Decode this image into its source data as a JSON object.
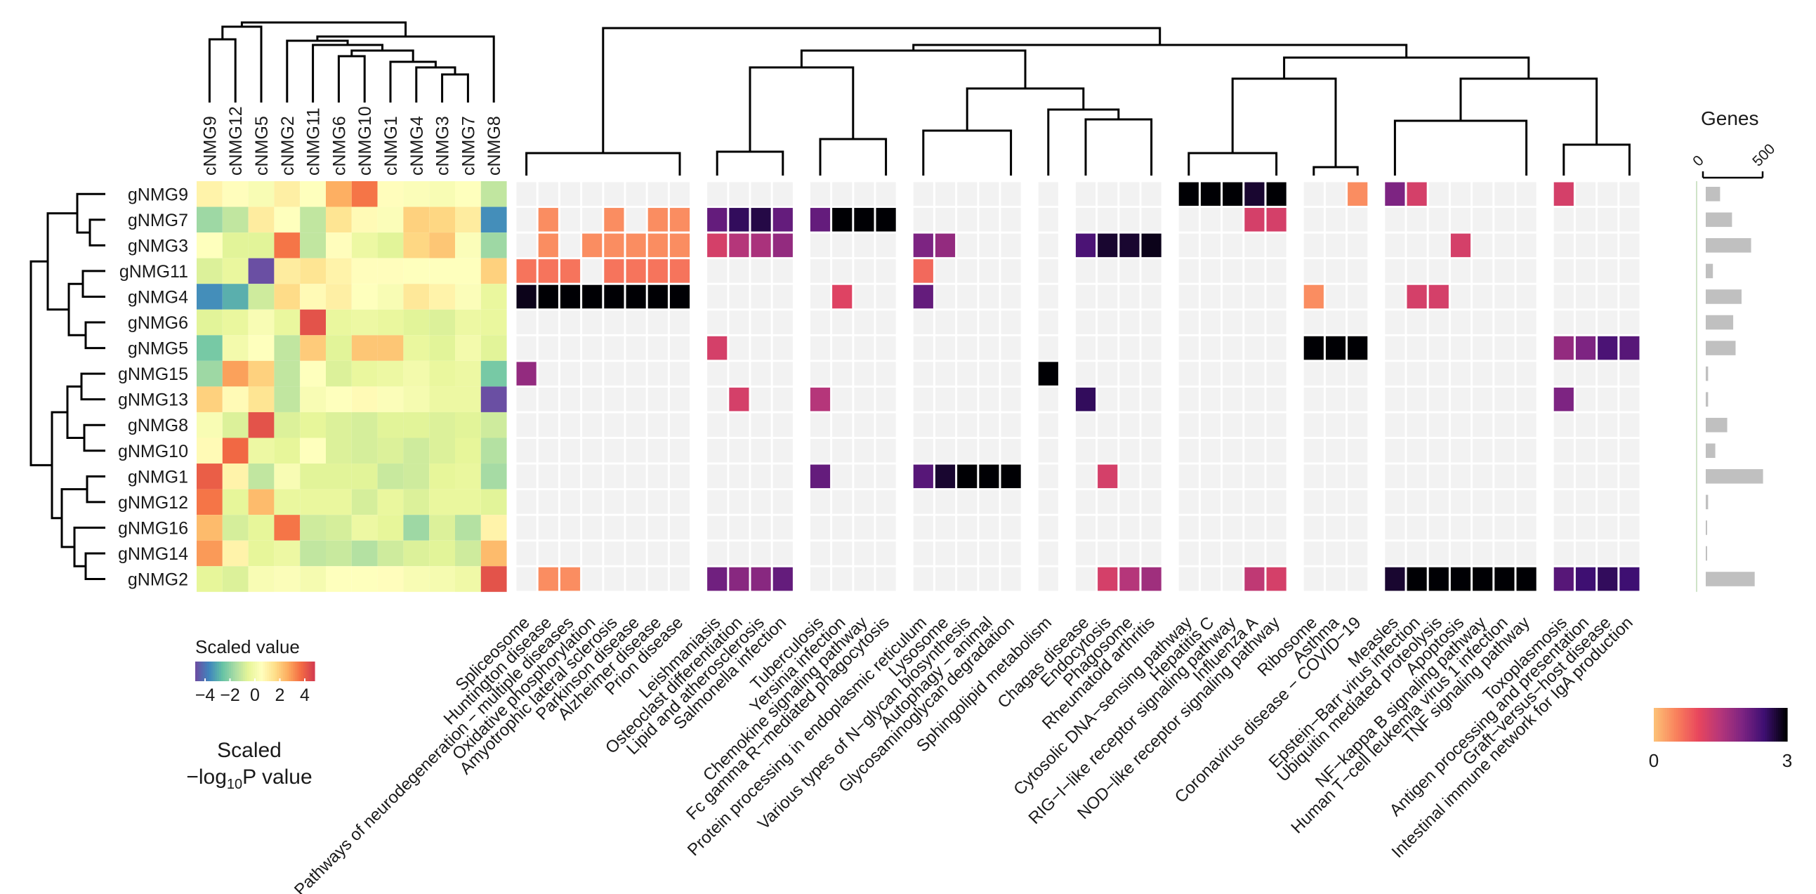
{
  "chart_data": {
    "type": "heatmap",
    "row_labels": [
      "gNMG9",
      "gNMG7",
      "gNMG3",
      "gNMG11",
      "gNMG4",
      "gNMG6",
      "gNMG5",
      "gNMG15",
      "gNMG13",
      "gNMG8",
      "gNMG10",
      "gNMG1",
      "gNMG12",
      "gNMG16",
      "gNMG14",
      "gNMG2"
    ],
    "left_panel": {
      "column_labels": [
        "cNMG9",
        "cNMG12",
        "cNMG5",
        "cNMG2",
        "cNMG11",
        "cNMG6",
        "cNMG10",
        "cNMG1",
        "cNMG4",
        "cNMG3",
        "cNMG7",
        "cNMG8"
      ],
      "legend_title": "Scaled value",
      "legend_ticks": [
        "−4",
        "−2",
        "0",
        "2",
        "4"
      ],
      "value_range": [
        -4,
        4
      ],
      "values": [
        [
          0.8,
          0.5,
          0.2,
          0.9,
          0.4,
          2.2,
          3.0,
          0.5,
          0.3,
          0.2,
          0.4,
          -1.0
        ],
        [
          -1.5,
          -1.0,
          1.0,
          0.4,
          -1.0,
          1.2,
          0.6,
          0.3,
          1.6,
          1.5,
          1.0,
          -3.0
        ],
        [
          0.4,
          -0.5,
          -0.5,
          3.0,
          -1.0,
          0.5,
          -0.2,
          -0.5,
          1.5,
          1.8,
          0.3,
          -1.5
        ],
        [
          -0.6,
          -0.3,
          -4.2,
          1.0,
          1.2,
          0.8,
          0.5,
          0.5,
          0.4,
          0.4,
          0.4,
          1.6
        ],
        [
          -3.0,
          -2.5,
          -0.8,
          1.4,
          0.6,
          0.9,
          0.4,
          0.2,
          1.1,
          0.8,
          0.3,
          -0.3
        ],
        [
          -0.5,
          -0.3,
          0.2,
          -0.3,
          3.6,
          -0.3,
          -0.2,
          -0.3,
          -0.5,
          -0.6,
          -0.2,
          -0.3
        ],
        [
          -2.0,
          0.0,
          0.4,
          -1.0,
          1.7,
          -0.5,
          1.8,
          1.8,
          -0.3,
          -0.5,
          0.0,
          -0.5
        ],
        [
          -1.5,
          2.4,
          1.6,
          -1.0,
          0.4,
          -0.6,
          -0.3,
          -0.2,
          0.0,
          -0.3,
          -0.2,
          -2.0
        ],
        [
          1.6,
          0.6,
          1.2,
          -1.0,
          0.2,
          0.4,
          0.6,
          0.3,
          0.1,
          -0.2,
          -0.2,
          -4.0
        ],
        [
          0.2,
          -0.6,
          3.6,
          -0.6,
          -0.4,
          -0.6,
          -0.7,
          -0.5,
          -0.5,
          -0.6,
          -0.5,
          -0.8
        ],
        [
          0.6,
          3.2,
          -0.2,
          -0.4,
          0.4,
          -0.6,
          -0.7,
          -0.6,
          -0.8,
          -0.6,
          -0.4,
          -1.2
        ],
        [
          3.4,
          0.8,
          -1.0,
          0.2,
          -0.5,
          -0.5,
          -0.5,
          -0.9,
          -0.8,
          -0.4,
          -0.3,
          -1.4
        ],
        [
          3.0,
          -0.4,
          2.0,
          -0.3,
          -0.3,
          -0.3,
          -0.7,
          -0.3,
          -0.6,
          -0.3,
          -0.3,
          -0.5
        ],
        [
          2.0,
          -0.7,
          -0.4,
          3.0,
          -0.8,
          -0.7,
          -0.2,
          -0.4,
          -1.5,
          -0.6,
          -1.2,
          0.8
        ],
        [
          2.5,
          0.8,
          -0.4,
          -0.2,
          -1.0,
          -0.9,
          -1.2,
          -0.8,
          -0.6,
          -0.5,
          -0.8,
          2.0
        ],
        [
          -0.4,
          -0.6,
          0.2,
          0.3,
          0.1,
          0.4,
          0.4,
          0.5,
          0.2,
          0.1,
          -0.1,
          3.6
        ]
      ]
    },
    "right_panel": {
      "value_label": "Scaled −log10P value",
      "colorbar_ticks": [
        "0",
        "3"
      ],
      "value_range": [
        0,
        3
      ],
      "column_labels": [
        "Spliceosome",
        "Huntington disease",
        "Pathways of neurodegeneration − multiple diseases",
        "Oxidative phosphorylation",
        "Amyotrophic lateral sclerosis",
        "Parkinson disease",
        "Alzheimer disease",
        "Prion disease",
        "Leishmaniasis",
        "Osteoclast differentiation",
        "Lipid and atherosclerosis",
        "Salmonella infection",
        "Tuberculosis",
        "Yersinia infection",
        "Chemokine signaling pathway",
        "Fc gamma R−mediated phagocytosis",
        "Protein processing in endoplasmic reticulum",
        "Lysosome",
        "Various types of N−glycan biosynthesis",
        "Autophagy − animal",
        "Glycosaminoglycan degradation",
        "Sphingolipid metabolism",
        "Chagas disease",
        "Endocytosis",
        "Phagosome",
        "Rheumatoid arthritis",
        "Cytosolic DNA−sensing pathway",
        "Hepatitis C",
        "RIG−I−like receptor signaling pathway",
        "Influenza A",
        "NOD−like receptor signaling pathway",
        "Ribosome",
        "Asthma",
        "Coronavirus disease − COVID−19",
        "Measles",
        "Epstein−Barr virus infection",
        "Ubiquitin mediated proteolysis",
        "Apoptosis",
        "NF−kappa B signaling pathway",
        "Human T−cell leukemia virus 1 infection",
        "TNF signaling pathway",
        "Toxoplasmosis",
        "Antigen processing and presentation",
        "Graft−versus−host disease",
        "Intestinal immune network for IgA production"
      ],
      "column_groups": [
        8,
        4,
        4,
        5,
        1,
        4,
        5,
        3,
        7,
        4
      ],
      "values": [
        [
          0,
          0,
          0,
          0,
          0,
          0,
          0,
          0,
          0,
          0,
          0,
          0,
          0,
          0,
          0,
          0,
          0,
          0,
          0,
          0,
          0,
          0,
          0,
          0,
          0,
          0,
          3,
          3,
          3,
          2.8,
          3,
          0,
          0,
          0.4,
          2.0,
          1.2,
          0,
          0,
          0,
          0,
          0,
          1.2,
          0,
          0,
          0
        ],
        [
          0,
          0.4,
          0,
          0,
          0.4,
          0,
          0.4,
          0.4,
          2.2,
          2.6,
          2.7,
          2.2,
          2.2,
          3,
          3,
          3,
          0,
          0,
          0,
          0,
          0,
          0,
          0,
          0,
          0,
          0,
          0,
          0,
          0,
          1.2,
          1.2,
          0,
          0,
          0,
          0,
          0,
          0,
          0,
          0,
          0,
          0,
          0,
          0,
          0,
          0
        ],
        [
          0,
          0.4,
          0,
          0.4,
          0.4,
          0.4,
          0.4,
          0.4,
          1.2,
          1.5,
          1.6,
          1.8,
          0,
          0,
          0,
          0,
          2.0,
          1.8,
          0,
          0,
          0,
          0,
          2.4,
          2.8,
          2.8,
          2.9,
          0,
          0,
          0,
          0,
          0,
          0,
          0,
          0,
          0,
          0,
          0,
          1.2,
          0,
          0,
          0,
          0,
          0,
          0,
          0
        ],
        [
          0.6,
          0.6,
          0.6,
          0,
          0.6,
          0.6,
          0.6,
          0.6,
          0,
          0,
          0,
          0,
          0,
          0,
          0,
          0,
          0.7,
          0,
          0,
          0,
          0,
          0,
          0,
          0,
          0,
          0,
          0,
          0,
          0,
          0,
          0,
          0,
          0,
          0,
          0,
          0,
          0,
          0,
          0,
          0,
          0,
          0,
          0,
          0,
          0
        ],
        [
          2.9,
          3,
          3,
          3,
          3,
          3,
          3,
          3,
          0,
          0,
          0,
          0,
          0,
          1.1,
          0,
          0,
          2.2,
          0,
          0,
          0,
          0,
          0,
          0,
          0,
          0,
          0,
          0,
          0,
          0,
          0,
          0,
          0.4,
          0,
          0,
          0,
          1.2,
          1.2,
          0,
          0,
          0,
          0,
          0,
          0,
          0,
          0
        ],
        [
          0,
          0,
          0,
          0,
          0,
          0,
          0,
          0,
          0,
          0,
          0,
          0,
          0,
          0,
          0,
          0,
          0,
          0,
          0,
          0,
          0,
          0,
          0,
          0,
          0,
          0,
          0,
          0,
          0,
          0,
          0,
          0,
          0,
          0,
          0,
          0,
          0,
          0,
          0,
          0,
          0,
          0,
          0,
          0,
          0
        ],
        [
          0,
          0,
          0,
          0,
          0,
          0,
          0,
          0,
          1.2,
          0,
          0,
          0,
          0,
          0,
          0,
          0,
          0,
          0,
          0,
          0,
          0,
          0,
          0,
          0,
          0,
          0,
          0,
          0,
          0,
          0,
          0,
          3,
          3,
          3,
          0,
          0,
          0,
          0,
          0,
          0,
          0,
          1.8,
          2.0,
          2.4,
          2.3
        ],
        [
          1.8,
          0,
          0,
          0,
          0,
          0,
          0,
          0,
          0,
          0,
          0,
          0,
          0,
          0,
          0,
          0,
          0,
          0,
          0,
          0,
          0,
          3,
          0,
          0,
          0,
          0,
          0,
          0,
          0,
          0,
          0,
          0,
          0,
          0,
          0,
          0,
          0,
          0,
          0,
          0,
          0,
          0,
          0,
          0,
          0
        ],
        [
          0,
          0,
          0,
          0,
          0,
          0,
          0,
          0,
          0,
          1.2,
          0,
          0,
          1.5,
          0,
          0,
          0,
          0,
          0,
          0,
          0,
          0,
          0,
          2.6,
          0,
          0,
          0,
          0,
          0,
          0,
          0,
          0,
          0,
          0,
          0,
          0,
          0,
          0,
          0,
          0,
          0,
          0,
          2.0,
          0,
          0,
          0
        ],
        [
          0,
          0,
          0,
          0,
          0,
          0,
          0,
          0,
          0,
          0,
          0,
          0,
          0,
          0,
          0,
          0,
          0,
          0,
          0,
          0,
          0,
          0,
          0,
          0,
          0,
          0,
          0,
          0,
          0,
          0,
          0,
          0,
          0,
          0,
          0,
          0,
          0,
          0,
          0,
          0,
          0,
          0,
          0,
          0,
          0
        ],
        [
          0,
          0,
          0,
          0,
          0,
          0,
          0,
          0,
          0,
          0,
          0,
          0,
          0,
          0,
          0,
          0,
          0,
          0,
          0,
          0,
          0,
          0,
          0,
          0,
          0,
          0,
          0,
          0,
          0,
          0,
          0,
          0,
          0,
          0,
          0,
          0,
          0,
          0,
          0,
          0,
          0,
          0,
          0,
          0,
          0
        ],
        [
          0,
          0,
          0,
          0,
          0,
          0,
          0,
          0,
          0,
          0,
          0,
          0,
          2.2,
          0,
          0,
          0,
          2.3,
          2.8,
          3,
          3,
          3,
          0,
          0,
          1.2,
          0,
          0,
          0,
          0,
          0,
          0,
          0,
          0,
          0,
          0,
          0,
          0,
          0,
          0,
          0,
          0,
          0,
          0,
          0,
          0,
          0
        ],
        [
          0,
          0,
          0,
          0,
          0,
          0,
          0,
          0,
          0,
          0,
          0,
          0,
          0,
          0,
          0,
          0,
          0,
          0,
          0,
          0,
          0,
          0,
          0,
          0,
          0,
          0,
          0,
          0,
          0,
          0,
          0,
          0,
          0,
          0,
          0,
          0,
          0,
          0,
          0,
          0,
          0,
          0,
          0,
          0,
          0
        ],
        [
          0,
          0,
          0,
          0,
          0,
          0,
          0,
          0,
          0,
          0,
          0,
          0,
          0,
          0,
          0,
          0,
          0,
          0,
          0,
          0,
          0,
          0,
          0,
          0,
          0,
          0,
          0,
          0,
          0,
          0,
          0,
          0,
          0,
          0,
          0,
          0,
          0,
          0,
          0,
          0,
          0,
          0,
          0,
          0,
          0
        ],
        [
          0,
          0,
          0,
          0,
          0,
          0,
          0,
          0,
          0,
          0,
          0,
          0,
          0,
          0,
          0,
          0,
          0,
          0,
          0,
          0,
          0,
          0,
          0,
          0,
          0,
          0,
          0,
          0,
          0,
          0,
          0,
          0,
          0,
          0,
          0,
          0,
          0,
          0,
          0,
          0,
          0,
          0,
          0,
          0,
          0
        ],
        [
          0,
          0.4,
          0.4,
          0,
          0,
          0,
          0,
          0,
          2.1,
          1.9,
          1.9,
          2.2,
          0,
          0,
          0,
          0,
          0,
          0,
          0,
          0,
          0,
          0,
          0,
          1.2,
          1.5,
          1.7,
          0,
          0,
          0,
          1.4,
          1.2,
          0,
          0,
          0,
          2.8,
          3,
          3,
          3,
          3,
          3,
          3,
          2.3,
          2.5,
          2.6,
          2.5
        ]
      ]
    },
    "genes_bar": {
      "title": "Genes",
      "ticks": [
        "0",
        "500"
      ],
      "values": [
        120,
        220,
        380,
        60,
        300,
        230,
        250,
        20,
        20,
        180,
        80,
        480,
        20,
        10,
        10,
        410
      ]
    }
  },
  "colors": {
    "missing": "#f2f2f2",
    "divergent_scale": [
      "#6a4fa3",
      "#3f86bd",
      "#66c2a5",
      "#abdda4",
      "#e6f598",
      "#ffffbf",
      "#fee08b",
      "#fdae61",
      "#f46d43",
      "#d53e4f"
    ],
    "magma_scale": [
      "#fcbf76",
      "#f9805c",
      "#e8465d",
      "#b5367a",
      "#7d2482",
      "#3e0f72",
      "#000004"
    ],
    "genes_bar": "#c0c0c0"
  }
}
